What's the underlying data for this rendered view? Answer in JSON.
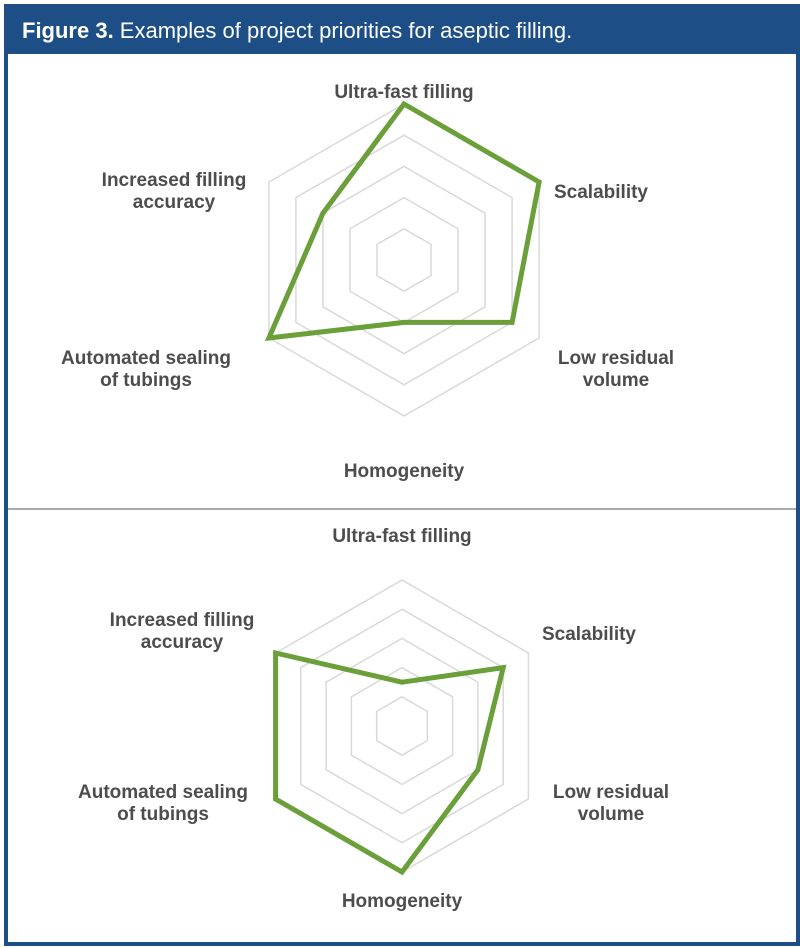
{
  "figure": {
    "label": "Figure 3.",
    "caption": " Examples of project priorities for aseptic filling."
  },
  "colors": {
    "frame": "#1d4f86",
    "series": "#6a9f3a",
    "grid": "#d9d9d9",
    "label": "#4d4d4d"
  },
  "chart_data": [
    {
      "type": "radar",
      "axes": [
        "Ultra-fast filling",
        "Scalability",
        "Low residual volume",
        "Homogeneity",
        "Automated sealing of tubings",
        "Increased filling accuracy"
      ],
      "label_lines": [
        [
          "Ultra-fast filling"
        ],
        [
          "Scalability"
        ],
        [
          "Low residual",
          "volume"
        ],
        [
          "Homogeneity"
        ],
        [
          "Automated sealing",
          "of tubings"
        ],
        [
          "Increased filling",
          "accuracy"
        ]
      ],
      "levels": 5,
      "max": 5,
      "grid": true,
      "series": [
        {
          "values": [
            5,
            5,
            4,
            2,
            5,
            3
          ]
        }
      ]
    },
    {
      "type": "radar",
      "axes": [
        "Ultra-fast filling",
        "Scalability",
        "Low residual volume",
        "Homogeneity",
        "Automated sealing of tubings",
        "Increased filling accuracy"
      ],
      "label_lines": [
        [
          "Ultra-fast filling"
        ],
        [
          "Scalability"
        ],
        [
          "Low residual",
          "volume"
        ],
        [
          "Homogeneity"
        ],
        [
          "Automated sealing",
          "of tubings"
        ],
        [
          "Increased filling",
          "accuracy"
        ]
      ],
      "levels": 5,
      "max": 5,
      "grid": true,
      "series": [
        {
          "values": [
            1.5,
            4,
            3,
            5,
            5,
            5
          ]
        }
      ]
    }
  ]
}
